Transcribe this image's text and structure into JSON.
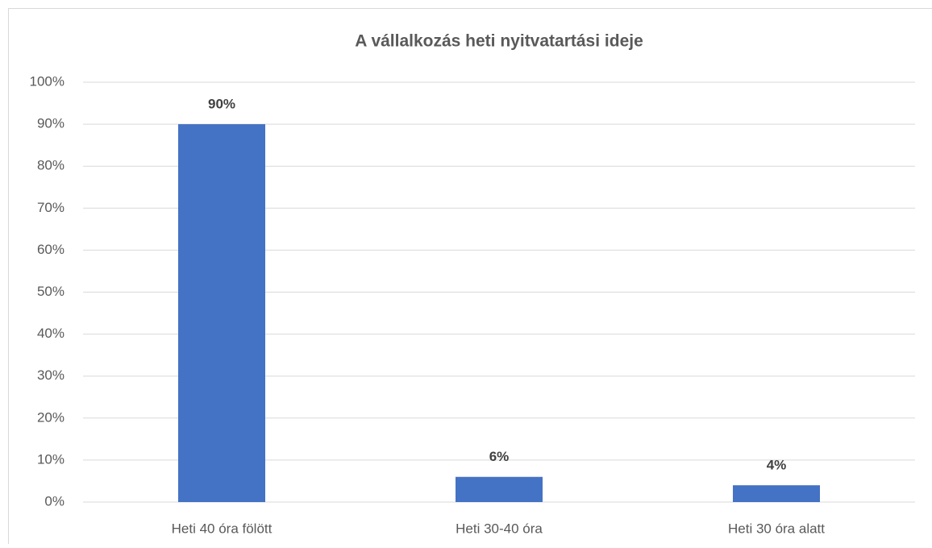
{
  "chart_data": {
    "type": "bar",
    "title": "A vállalkozás heti nyitvatartási ideje",
    "categories": [
      "Heti 40 óra fölött",
      "Heti 30-40 óra",
      "Heti 30 óra alatt"
    ],
    "values": [
      90,
      6,
      4
    ],
    "value_labels": [
      "90%",
      "6%",
      "4%"
    ],
    "color": "#4472c4",
    "ylim": [
      0,
      100
    ],
    "yticks": [
      {
        "value": 0,
        "label": "0%"
      },
      {
        "value": 10,
        "label": "10%"
      },
      {
        "value": 20,
        "label": "20%"
      },
      {
        "value": 30,
        "label": "30%"
      },
      {
        "value": 40,
        "label": "40%"
      },
      {
        "value": 50,
        "label": "50%"
      },
      {
        "value": 60,
        "label": "60%"
      },
      {
        "value": 70,
        "label": "70%"
      },
      {
        "value": 80,
        "label": "80%"
      },
      {
        "value": 90,
        "label": "90%"
      },
      {
        "value": 100,
        "label": "100%"
      }
    ],
    "grid": true
  }
}
